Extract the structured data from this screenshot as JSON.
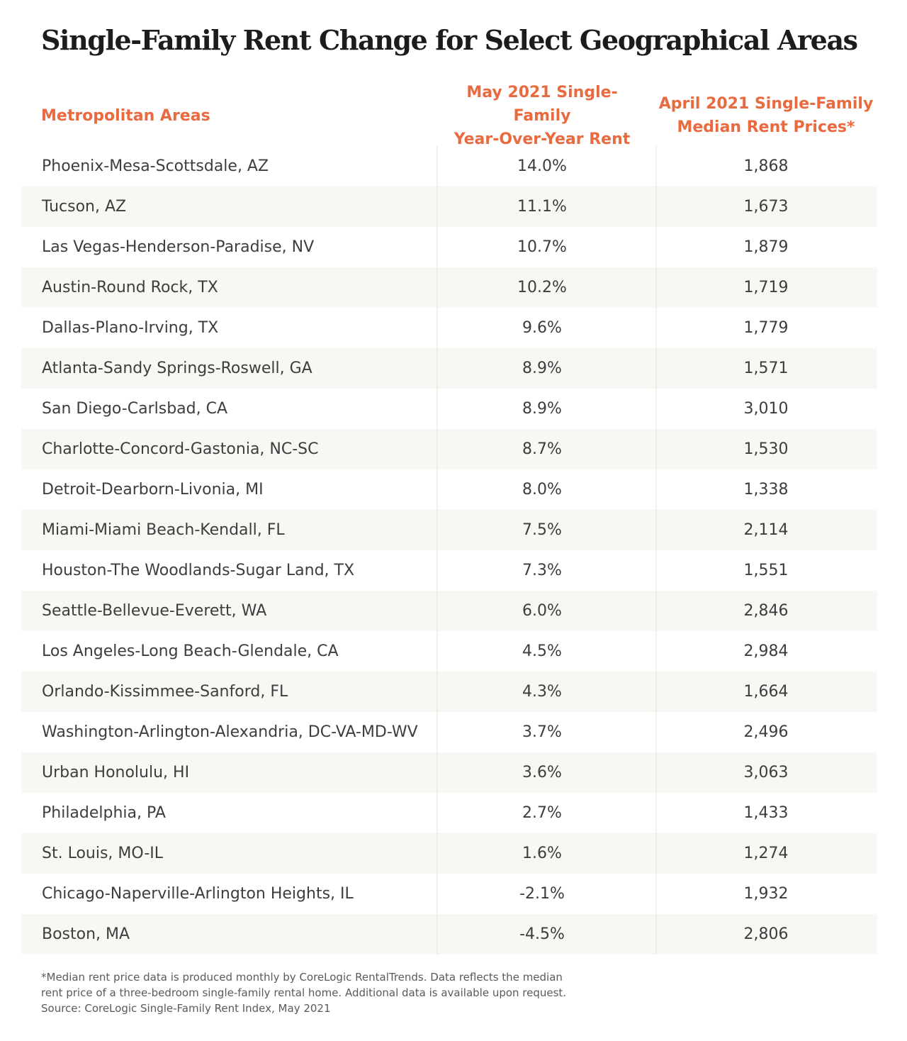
{
  "chart_data": {
    "type": "table",
    "title": "Single-Family Rent Change for Select Geographical Areas",
    "columns": [
      {
        "lines": [
          "Metropolitan Areas"
        ]
      },
      {
        "lines": [
          "May 2021 Single-Family",
          "Year-Over-Year Rent"
        ]
      },
      {
        "lines": [
          "April 2021 Single-Family",
          "Median Rent Prices*"
        ]
      }
    ],
    "rows": [
      {
        "area": "Phoenix-Mesa-Scottsdale, AZ",
        "yoy": "14.0%",
        "price": "1,868"
      },
      {
        "area": "Tucson, AZ",
        "yoy": "11.1%",
        "price": "1,673"
      },
      {
        "area": "Las Vegas-Henderson-Paradise, NV",
        "yoy": "10.7%",
        "price": "1,879"
      },
      {
        "area": "Austin-Round Rock, TX",
        "yoy": "10.2%",
        "price": "1,719"
      },
      {
        "area": "Dallas-Plano-Irving, TX",
        "yoy": "9.6%",
        "price": "1,779"
      },
      {
        "area": "Atlanta-Sandy Springs-Roswell, GA",
        "yoy": "8.9%",
        "price": "1,571"
      },
      {
        "area": "San Diego-Carlsbad, CA",
        "yoy": "8.9%",
        "price": "3,010"
      },
      {
        "area": "Charlotte-Concord-Gastonia, NC-SC",
        "yoy": "8.7%",
        "price": "1,530"
      },
      {
        "area": "Detroit-Dearborn-Livonia, MI",
        "yoy": "8.0%",
        "price": "1,338"
      },
      {
        "area": "Miami-Miami Beach-Kendall, FL",
        "yoy": "7.5%",
        "price": "2,114"
      },
      {
        "area": "Houston-The Woodlands-Sugar Land, TX",
        "yoy": "7.3%",
        "price": "1,551"
      },
      {
        "area": "Seattle-Bellevue-Everett, WA",
        "yoy": "6.0%",
        "price": "2,846"
      },
      {
        "area": "Los Angeles-Long Beach-Glendale, CA",
        "yoy": "4.5%",
        "price": "2,984"
      },
      {
        "area": "Orlando-Kissimmee-Sanford, FL",
        "yoy": "4.3%",
        "price": "1,664"
      },
      {
        "area": "Washington-Arlington-Alexandria, DC-VA-MD-WV",
        "yoy": "3.7%",
        "price": "2,496"
      },
      {
        "area": "Urban Honolulu, HI",
        "yoy": "3.6%",
        "price": "3,063"
      },
      {
        "area": "Philadelphia, PA",
        "yoy": "2.7%",
        "price": "1,433"
      },
      {
        "area": "St. Louis, MO-IL",
        "yoy": "1.6%",
        "price": "1,274"
      },
      {
        "area": "Chicago-Naperville-Arlington Heights, IL",
        "yoy": "-2.1%",
        "price": "1,932"
      },
      {
        "area": "Boston, MA",
        "yoy": "-4.5%",
        "price": "2,806"
      }
    ],
    "footnote": [
      "*Median rent price data is produced monthly by CoreLogic RentalTrends. Data reflects the median",
      "rent price of a three-bedroom single-family rental home. Additional data is available upon request.",
      "Source: CoreLogic Single-Family Rent Index, May 2021"
    ],
    "colors": {
      "header_text": "#ea6a3f",
      "title_text": "#1c1c1c",
      "body_text": "#3d3d3d",
      "row_stripe": "#f8f7f4"
    }
  }
}
